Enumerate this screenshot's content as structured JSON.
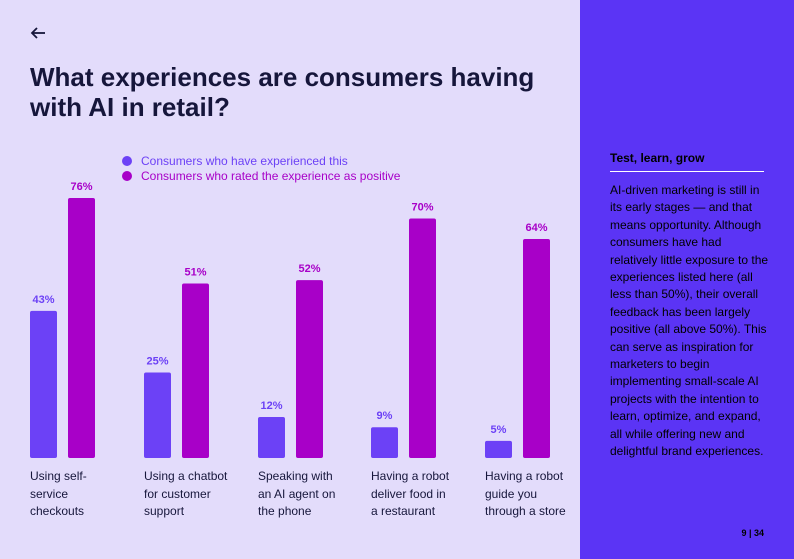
{
  "page": {
    "back_icon": "arrow-left-icon",
    "title": "What experiences are consumers having with AI in retail?",
    "page_number": "9 | 34"
  },
  "colors": {
    "background_left": "#e3dcfb",
    "panel": "#5b34f5",
    "experienced": "#6c41f6",
    "positive": "#a800c8",
    "title": "#16163b"
  },
  "chart_data": {
    "type": "bar",
    "title": "What experiences are consumers having with AI in retail?",
    "categories": [
      "Using self-service checkouts",
      "Using a chatbot for customer support",
      "Speaking with an AI agent on the phone",
      "Having a robot deliver food in a restaurant",
      "Having a robot guide you through a store"
    ],
    "category_lines": [
      [
        "Using self-",
        "service",
        "checkouts"
      ],
      [
        "Using a chatbot",
        "for customer",
        "support"
      ],
      [
        "Speaking with",
        "an AI agent on",
        "the phone"
      ],
      [
        "Having a robot",
        "deliver food in",
        "a restaurant"
      ],
      [
        "Having a robot",
        "guide you",
        "through a store"
      ]
    ],
    "series": [
      {
        "name": "Consumers who have experienced this",
        "values": [
          43,
          25,
          12,
          9,
          5
        ],
        "labels": [
          "43%",
          "25%",
          "12%",
          "9%",
          "5%"
        ],
        "color": "#6c41f6"
      },
      {
        "name": "Consumers who rated the experience as positive",
        "values": [
          76,
          51,
          52,
          70,
          64
        ],
        "labels": [
          "76%",
          "51%",
          "52%",
          "70%",
          "64%"
        ],
        "color": "#a800c8"
      }
    ],
    "ylim": [
      0,
      76
    ],
    "grid": false,
    "legend_position": "top"
  },
  "sidebar": {
    "heading": "Test, learn, grow",
    "body": "AI-driven marketing is still in its early stages — and that means opportunity. Although consumers have had relatively little exposure to the experiences listed here (all less than 50%), their overall feedback has been largely positive (all above 50%). This can serve as inspiration for marketers to begin implementing small-scale AI projects with the intention to learn, optimize, and expand, all while offering new and delightful brand experiences."
  }
}
